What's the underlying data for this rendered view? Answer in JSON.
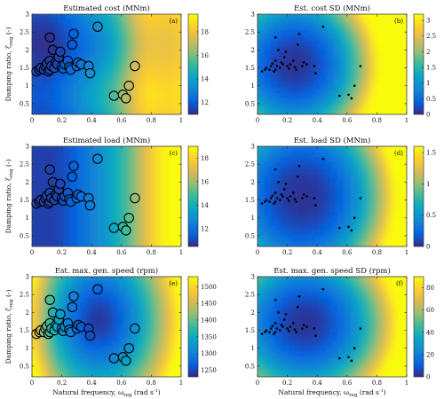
{
  "axis_labels": {
    "x": "Natural frequency, ω",
    "x_sub": "reg",
    "x_unit": " (rad s",
    "x_unit_sup": "-1",
    "x_unit_close": ")",
    "y": "Damping ratio, ζ",
    "y_sub": "reg",
    "y_unit": " (-)"
  },
  "chart_data": [
    {
      "type": "heatmap",
      "id": "a",
      "panel_label": "(a)",
      "title": "Estimated  cost  (MNm)",
      "xlim": [
        0,
        1
      ],
      "ylim": [
        0.2,
        3
      ],
      "xticks": [
        "0",
        "0.2",
        "0.4",
        "0.6",
        "0.8",
        "1"
      ],
      "yticks": [
        "0.5",
        "1",
        "1.5",
        "2",
        "2.5",
        "3"
      ],
      "colorbar": {
        "range": [
          11,
          19.5
        ],
        "ticks": [
          "12",
          "14",
          "16",
          "18"
        ]
      },
      "markers": "circles"
    },
    {
      "type": "heatmap",
      "id": "b",
      "panel_label": "(b)",
      "title": "Est.  cost  SD  (MNm)",
      "xlim": [
        0,
        1
      ],
      "ylim": [
        0.2,
        3
      ],
      "xticks": [
        "0",
        "0.2",
        "0.4",
        "0.6",
        "0.8",
        "1"
      ],
      "yticks": [
        "0.5",
        "1",
        "1.5",
        "2",
        "2.5",
        "3"
      ],
      "colorbar": {
        "range": [
          0,
          3.2
        ],
        "ticks": [
          "0",
          "0.5",
          "1",
          "1.5",
          "2",
          "2.5",
          "3"
        ]
      },
      "markers": "dots"
    },
    {
      "type": "heatmap",
      "id": "c",
      "panel_label": "(c)",
      "title": "Estimated  load  (MNm)",
      "xlim": [
        0,
        1
      ],
      "ylim": [
        0.2,
        3
      ],
      "xticks": [
        "0",
        "0.2",
        "0.4",
        "0.6",
        "0.8",
        "1"
      ],
      "yticks": [
        "0.5",
        "1",
        "1.5",
        "2",
        "2.5",
        "3"
      ],
      "colorbar": {
        "range": [
          10.5,
          19
        ],
        "ticks": [
          "12",
          "14",
          "16",
          "18"
        ]
      },
      "markers": "circles"
    },
    {
      "type": "heatmap",
      "id": "d",
      "panel_label": "(d)",
      "title": "Est.  load  SD  (MNm)",
      "xlim": [
        0,
        1
      ],
      "ylim": [
        0.2,
        3
      ],
      "xticks": [
        "0",
        "0.2",
        "0.4",
        "0.6",
        "0.8",
        "1"
      ],
      "yticks": [
        "0.5",
        "1",
        "1.5",
        "2",
        "2.5",
        "3"
      ],
      "colorbar": {
        "range": [
          0,
          1.6
        ],
        "ticks": [
          "0",
          "0.5",
          "1",
          "1.5"
        ]
      },
      "markers": "dots"
    },
    {
      "type": "heatmap",
      "id": "e",
      "panel_label": "(e)",
      "title": "Est.  max.  gen.  speed  (rpm)",
      "xlim": [
        0,
        1
      ],
      "ylim": [
        0.2,
        3
      ],
      "xticks": [
        "0",
        "0.2",
        "0.4",
        "0.6",
        "0.8",
        "1"
      ],
      "yticks": [
        "0.5",
        "1",
        "1.5",
        "2",
        "2.5",
        "3"
      ],
      "colorbar": {
        "range": [
          1230,
          1530
        ],
        "ticks": [
          "1250",
          "1300",
          "1350",
          "1400",
          "1450",
          "1500"
        ]
      },
      "markers": "circles"
    },
    {
      "type": "heatmap",
      "id": "f",
      "panel_label": "(f)",
      "title": "Est.  max.  gen.  speed  SD  (rpm)",
      "xlim": [
        0,
        1
      ],
      "ylim": [
        0.2,
        3
      ],
      "xticks": [
        "0",
        "0.2",
        "0.4",
        "0.6",
        "0.8",
        "1"
      ],
      "yticks": [
        "0.5",
        "1",
        "1.5",
        "2",
        "2.5",
        "3"
      ],
      "colorbar": {
        "range": [
          0,
          90
        ],
        "ticks": [
          "0",
          "20",
          "40",
          "60",
          "80"
        ]
      },
      "markers": "dots"
    }
  ],
  "points": [
    {
      "x": 0.03,
      "y": 1.4
    },
    {
      "x": 0.05,
      "y": 1.45
    },
    {
      "x": 0.06,
      "y": 1.5
    },
    {
      "x": 0.08,
      "y": 1.45
    },
    {
      "x": 0.09,
      "y": 1.55
    },
    {
      "x": 0.1,
      "y": 1.62
    },
    {
      "x": 0.11,
      "y": 1.4
    },
    {
      "x": 0.12,
      "y": 1.7
    },
    {
      "x": 0.12,
      "y": 1.45
    },
    {
      "x": 0.13,
      "y": 1.55
    },
    {
      "x": 0.14,
      "y": 2.0
    },
    {
      "x": 0.12,
      "y": 2.35
    },
    {
      "x": 0.15,
      "y": 1.5
    },
    {
      "x": 0.16,
      "y": 1.65
    },
    {
      "x": 0.17,
      "y": 1.6
    },
    {
      "x": 0.18,
      "y": 1.8
    },
    {
      "x": 0.19,
      "y": 1.95
    },
    {
      "x": 0.2,
      "y": 1.55
    },
    {
      "x": 0.21,
      "y": 1.48
    },
    {
      "x": 0.22,
      "y": 1.6
    },
    {
      "x": 0.24,
      "y": 1.7
    },
    {
      "x": 0.25,
      "y": 1.52
    },
    {
      "x": 0.26,
      "y": 1.45
    },
    {
      "x": 0.27,
      "y": 2.15
    },
    {
      "x": 0.28,
      "y": 2.45
    },
    {
      "x": 0.3,
      "y": 1.55
    },
    {
      "x": 0.31,
      "y": 1.65
    },
    {
      "x": 0.33,
      "y": 1.6
    },
    {
      "x": 0.38,
      "y": 1.55
    },
    {
      "x": 0.39,
      "y": 1.35
    },
    {
      "x": 0.44,
      "y": 2.65
    },
    {
      "x": 0.55,
      "y": 0.72
    },
    {
      "x": 0.61,
      "y": 0.75
    },
    {
      "x": 0.63,
      "y": 0.65
    },
    {
      "x": 0.65,
      "y": 1.0
    },
    {
      "x": 0.69,
      "y": 1.55
    }
  ],
  "colors": {
    "parula": [
      "#352a87",
      "#0363e1",
      "#1485d4",
      "#06a7c6",
      "#38b99e",
      "#92bf73",
      "#d9ba56",
      "#fcce2e",
      "#f9fb0e"
    ]
  }
}
